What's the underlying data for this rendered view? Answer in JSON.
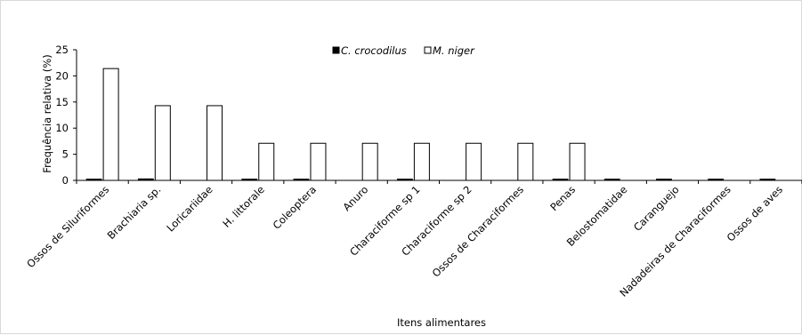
{
  "chart_data": {
    "type": "bar",
    "title": "",
    "xlabel": "Itens alimentares",
    "ylabel": "Frequência relativa (%)",
    "ylim": [
      0,
      25
    ],
    "yticks": [
      0,
      5,
      10,
      15,
      20,
      25
    ],
    "grid": false,
    "legend_position": "top-center",
    "categories": [
      "Ossos de Siluriformes",
      "Brachiaria sp.",
      "Loricariidae",
      "H. littorale",
      "Coleoptera",
      "Anuro",
      "Characiforme sp 1",
      "Characiforme sp 2",
      "Ossos de Characiformes",
      "Penas",
      "Belostomatidae",
      "Caranguejo",
      "Nadadeiras de Characiformes",
      "Ossos de aves"
    ],
    "series": [
      {
        "name": "C. crocodilus",
        "color": "#000000",
        "fill": "solid",
        "values": [
          0.1,
          0.3,
          0,
          0.1,
          0.1,
          0,
          0.1,
          0,
          0,
          0.1,
          0.1,
          0.1,
          0.1,
          0.1
        ]
      },
      {
        "name": "M. niger",
        "color": "#000000",
        "fill": "hollow",
        "values": [
          21.4,
          14.3,
          14.3,
          7.1,
          7.1,
          7.1,
          7.1,
          7.1,
          7.1,
          7.1,
          0,
          0,
          0,
          0
        ]
      }
    ]
  }
}
